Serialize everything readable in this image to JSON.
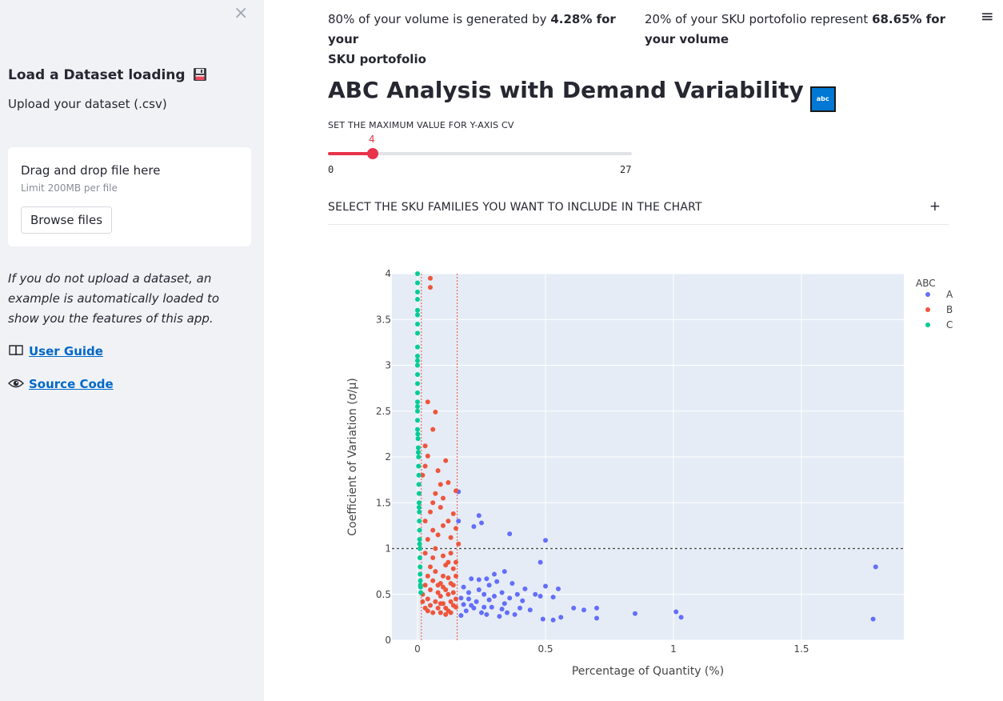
{
  "sidebar": {
    "close_label": "×",
    "heading": "Load a Dataset loading",
    "subheading": "Upload your dataset (.csv)",
    "uploader": {
      "title": "Drag and drop file here",
      "limit": "Limit 200MB per file",
      "browse_label": "Browse files"
    },
    "note": "If you do not upload a dataset, an example is automatically loaded to show you the features of this app.",
    "links": [
      {
        "label": "User Guide",
        "icon": "book-icon"
      },
      {
        "label": "Source Code",
        "icon": "eye-icon"
      }
    ]
  },
  "header": {
    "menu_label": "≡"
  },
  "kpis": [
    {
      "prefix": "80% of your volume is generated by ",
      "bold": "4.28% for your",
      "suffix": "SKU portofolio"
    },
    {
      "prefix": "20% of your SKU portofolio represent ",
      "bold": "68.65% for",
      "suffix": "your volume"
    }
  ],
  "title": "ABC Analysis with Demand Variability",
  "title_badge": "abc",
  "slider": {
    "label": "SET THE MAXIMUM VALUE FOR Y-AXIS CV",
    "value": 4,
    "min": 0,
    "max": 27
  },
  "expander": {
    "label": "SELECT THE SKU FAMILIES YOU WANT TO INCLUDE IN THE CHART",
    "icon": "+"
  },
  "colors": {
    "A": "#636efa",
    "B": "#ef553b",
    "C": "#00cc96",
    "accent": "#e8334a",
    "plot_bg": "#e5ecf6"
  },
  "chart_data": {
    "type": "scatter",
    "xlabel": "Percentage of Quantity (%)",
    "ylabel": "Coefficient of Variation (σ/μ)",
    "xlim": [
      -0.1,
      1.9
    ],
    "ylim": [
      0,
      4
    ],
    "xticks": [
      "0",
      "0.5",
      "1",
      "1.5"
    ],
    "xtick_values": [
      0,
      0.5,
      1,
      1.5
    ],
    "yticks": [
      "0",
      "0.5",
      "1",
      "1.5",
      "2",
      "2.5",
      "3",
      "3.5",
      "4"
    ],
    "ytick_values": [
      0,
      0.5,
      1,
      1.5,
      2,
      2.5,
      3,
      3.5,
      4
    ],
    "legend_title": "ABC",
    "legend_position": "top-right",
    "reference_lines": [
      {
        "axis": "x",
        "value": 0.015,
        "style": "dotted",
        "color": "#ef553b"
      },
      {
        "axis": "x",
        "value": 0.155,
        "style": "dotted",
        "color": "#ef553b"
      },
      {
        "axis": "y",
        "value": 1,
        "style": "dotted",
        "color": "#444444"
      }
    ],
    "series": [
      {
        "name": "A",
        "points": [
          [
            0.16,
            1.62
          ],
          [
            0.24,
            1.36
          ],
          [
            0.25,
            1.28
          ],
          [
            0.22,
            1.24
          ],
          [
            0.16,
            1.3
          ],
          [
            0.36,
            1.16
          ],
          [
            0.5,
            1.09
          ],
          [
            0.48,
            0.85
          ],
          [
            0.34,
            0.75
          ],
          [
            0.31,
            0.64
          ],
          [
            0.21,
            0.67
          ],
          [
            0.24,
            0.66
          ],
          [
            0.28,
            0.6
          ],
          [
            0.37,
            0.62
          ],
          [
            0.42,
            0.56
          ],
          [
            0.5,
            0.59
          ],
          [
            0.55,
            0.56
          ],
          [
            0.46,
            0.5
          ],
          [
            0.48,
            0.48
          ],
          [
            0.53,
            0.47
          ],
          [
            0.39,
            0.5
          ],
          [
            0.33,
            0.52
          ],
          [
            0.3,
            0.48
          ],
          [
            0.28,
            0.44
          ],
          [
            0.26,
            0.5
          ],
          [
            0.2,
            0.45
          ],
          [
            0.18,
            0.39
          ],
          [
            0.22,
            0.35
          ],
          [
            0.25,
            0.3
          ],
          [
            0.27,
            0.28
          ],
          [
            0.32,
            0.26
          ],
          [
            0.35,
            0.3
          ],
          [
            0.38,
            0.28
          ],
          [
            0.4,
            0.35
          ],
          [
            0.44,
            0.33
          ],
          [
            0.49,
            0.23
          ],
          [
            0.53,
            0.22
          ],
          [
            0.56,
            0.25
          ],
          [
            0.61,
            0.35
          ],
          [
            0.65,
            0.33
          ],
          [
            0.7,
            0.35
          ],
          [
            0.7,
            0.24
          ],
          [
            0.85,
            0.29
          ],
          [
            1.01,
            0.31
          ],
          [
            1.03,
            0.25
          ],
          [
            1.78,
            0.23
          ],
          [
            1.79,
            0.8
          ],
          [
            0.17,
            0.27
          ],
          [
            0.19,
            0.32
          ],
          [
            0.21,
            0.38
          ],
          [
            0.23,
            0.42
          ],
          [
            0.29,
            0.36
          ],
          [
            0.34,
            0.4
          ],
          [
            0.36,
            0.46
          ],
          [
            0.41,
            0.43
          ],
          [
            0.3,
            0.72
          ],
          [
            0.27,
            0.67
          ],
          [
            0.18,
            0.58
          ],
          [
            0.2,
            0.52
          ],
          [
            0.24,
            0.55
          ],
          [
            0.17,
            0.46
          ],
          [
            0.26,
            0.36
          ],
          [
            0.33,
            0.34
          ]
        ]
      },
      {
        "name": "B",
        "points": [
          [
            0.05,
            3.95
          ],
          [
            0.05,
            3.85
          ],
          [
            0.07,
            2.49
          ],
          [
            0.03,
            2.12
          ],
          [
            0.04,
            2.01
          ],
          [
            0.11,
            1.96
          ],
          [
            0.03,
            1.9
          ],
          [
            0.08,
            1.85
          ],
          [
            0.12,
            1.72
          ],
          [
            0.15,
            1.63
          ],
          [
            0.1,
            1.55
          ],
          [
            0.06,
            1.5
          ],
          [
            0.09,
            1.45
          ],
          [
            0.14,
            1.38
          ],
          [
            0.12,
            1.3
          ],
          [
            0.15,
            1.22
          ],
          [
            0.13,
            1.12
          ],
          [
            0.16,
            1.05
          ],
          [
            0.04,
            1.1
          ],
          [
            0.07,
            1.0
          ],
          [
            0.1,
            0.92
          ],
          [
            0.12,
            0.85
          ],
          [
            0.14,
            0.78
          ],
          [
            0.15,
            0.7
          ],
          [
            0.13,
            0.62
          ],
          [
            0.11,
            0.55
          ],
          [
            0.09,
            0.48
          ],
          [
            0.07,
            0.42
          ],
          [
            0.05,
            0.38
          ],
          [
            0.03,
            0.35
          ],
          [
            0.04,
            0.32
          ],
          [
            0.06,
            0.3
          ],
          [
            0.08,
            0.35
          ],
          [
            0.1,
            0.4
          ],
          [
            0.12,
            0.32
          ],
          [
            0.14,
            0.38
          ],
          [
            0.15,
            0.45
          ],
          [
            0.02,
            0.5
          ],
          [
            0.03,
            0.6
          ],
          [
            0.04,
            0.7
          ],
          [
            0.05,
            0.8
          ],
          [
            0.06,
            0.9
          ],
          [
            0.03,
            1.3
          ],
          [
            0.05,
            1.4
          ],
          [
            0.07,
            1.6
          ],
          [
            0.09,
            1.7
          ],
          [
            0.02,
            1.8
          ],
          [
            0.06,
            2.3
          ],
          [
            0.04,
            2.6
          ],
          [
            0.08,
            0.6
          ],
          [
            0.1,
            0.7
          ],
          [
            0.12,
            0.5
          ],
          [
            0.14,
            0.6
          ],
          [
            0.09,
            0.3
          ],
          [
            0.11,
            0.35
          ],
          [
            0.13,
            0.42
          ],
          [
            0.02,
            0.42
          ],
          [
            0.05,
            0.55
          ],
          [
            0.07,
            0.75
          ],
          [
            0.09,
            0.62
          ],
          [
            0.11,
            0.82
          ],
          [
            0.13,
            0.95
          ],
          [
            0.15,
            0.85
          ],
          [
            0.06,
            1.2
          ],
          [
            0.08,
            1.15
          ],
          [
            0.1,
            1.25
          ],
          [
            0.03,
            0.95
          ],
          [
            0.04,
            0.45
          ],
          [
            0.06,
            0.65
          ],
          [
            0.08,
            0.52
          ],
          [
            0.1,
            0.58
          ],
          [
            0.12,
            0.68
          ],
          [
            0.14,
            0.52
          ],
          [
            0.15,
            0.36
          ],
          [
            0.13,
            0.3
          ],
          [
            0.11,
            0.28
          ],
          [
            0.09,
            0.4
          ]
        ]
      },
      {
        "name": "C",
        "points": [
          [
            0.0,
            4.0
          ],
          [
            0.0,
            3.9
          ],
          [
            0.0,
            3.8
          ],
          [
            0.0,
            3.72
          ],
          [
            0.0,
            3.6
          ],
          [
            0.0,
            3.45
          ],
          [
            0.0,
            3.35
          ],
          [
            0.0,
            3.2
          ],
          [
            0.0,
            3.1
          ],
          [
            0.0,
            3.0
          ],
          [
            0.0,
            2.9
          ],
          [
            0.0,
            2.8
          ],
          [
            0.0,
            2.7
          ],
          [
            0.0,
            2.6
          ],
          [
            0.0,
            2.5
          ],
          [
            0.0,
            2.4
          ],
          [
            0.0,
            2.3
          ],
          [
            0.002,
            2.2
          ],
          [
            0.003,
            2.1
          ],
          [
            0.004,
            2.0
          ],
          [
            0.004,
            1.9
          ],
          [
            0.005,
            1.8
          ],
          [
            0.005,
            1.7
          ],
          [
            0.006,
            1.6
          ],
          [
            0.006,
            1.5
          ],
          [
            0.007,
            1.4
          ],
          [
            0.007,
            1.3
          ],
          [
            0.008,
            1.2
          ],
          [
            0.008,
            1.1
          ],
          [
            0.009,
            1.0
          ],
          [
            0.009,
            0.9
          ],
          [
            0.01,
            0.8
          ],
          [
            0.01,
            0.72
          ],
          [
            0.011,
            0.65
          ],
          [
            0.012,
            0.58
          ],
          [
            0.013,
            0.52
          ],
          [
            0.0,
            3.55
          ],
          [
            0.0,
            3.05
          ],
          [
            0.0,
            2.55
          ],
          [
            0.001,
            2.25
          ],
          [
            0.003,
            2.05
          ],
          [
            0.006,
            1.45
          ],
          [
            0.008,
            1.05
          ],
          [
            0.011,
            0.6
          ]
        ]
      }
    ]
  }
}
